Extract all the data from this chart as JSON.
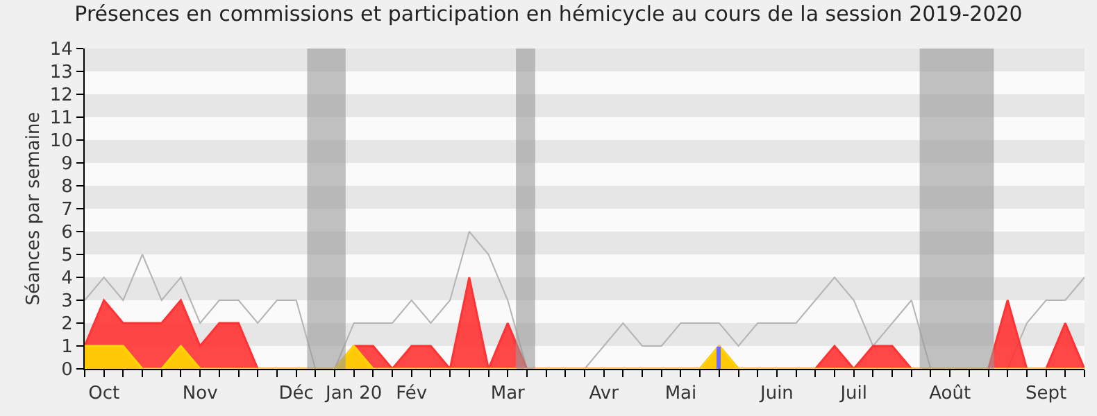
{
  "chart_data": {
    "type": "area",
    "title": "Présences en commissions et participation en hémicycle au cours de la session 2019-2020",
    "ylabel": "Séances par semaine",
    "x": [
      "2019-09-30",
      "2019-10-07",
      "2019-10-14",
      "2019-10-21",
      "2019-10-28",
      "2019-11-04",
      "2019-11-11",
      "2019-11-18",
      "2019-11-25",
      "2019-12-02",
      "2019-12-09",
      "2019-12-16",
      "2019-12-23",
      "2019-12-30",
      "2020-01-06",
      "2020-01-13",
      "2020-01-20",
      "2020-01-27",
      "2020-02-03",
      "2020-02-10",
      "2020-02-17",
      "2020-02-24",
      "2020-03-02",
      "2020-03-09",
      "2020-03-16",
      "2020-03-23",
      "2020-03-30",
      "2020-04-06",
      "2020-04-13",
      "2020-04-20",
      "2020-04-27",
      "2020-05-04",
      "2020-05-11",
      "2020-05-18",
      "2020-05-25",
      "2020-06-01",
      "2020-06-08",
      "2020-06-15",
      "2020-06-22",
      "2020-06-29",
      "2020-07-06",
      "2020-07-13",
      "2020-07-20",
      "2020-07-27",
      "2020-08-03",
      "2020-08-10",
      "2020-08-17",
      "2020-08-24",
      "2020-08-31",
      "2020-09-07",
      "2020-09-14",
      "2020-09-21",
      "2020-09-28"
    ],
    "series": [
      {
        "type": "line",
        "color": "#b4b4b4",
        "values": [
          3,
          4,
          3,
          5,
          3,
          4,
          2,
          3,
          3,
          2,
          3,
          3,
          0,
          0,
          2,
          2,
          2,
          3,
          2,
          3,
          6,
          5,
          3,
          0,
          0,
          0,
          0,
          1,
          2,
          1,
          1,
          2,
          2,
          2,
          1,
          2,
          2,
          2,
          3,
          4,
          3,
          1,
          2,
          3,
          0,
          0,
          0,
          0,
          0,
          2,
          3,
          3,
          4
        ]
      },
      {
        "color": "#ff3333",
        "values": [
          1,
          3,
          2,
          2,
          2,
          3,
          1,
          2,
          2,
          0,
          0,
          0,
          0,
          0,
          1,
          1,
          0,
          1,
          1,
          0,
          4,
          0,
          2,
          0,
          0,
          0,
          0,
          0,
          0,
          0,
          0,
          0,
          0,
          1,
          0,
          0,
          0,
          0,
          0,
          1,
          0,
          1,
          1,
          0,
          0,
          0,
          0,
          0,
          3,
          0,
          0,
          2,
          0
        ]
      },
      {
        "color": "#ffd700",
        "values": [
          1,
          1,
          1,
          0,
          0,
          1,
          0,
          0,
          0,
          0,
          0,
          0,
          0,
          0,
          1,
          0,
          0,
          0,
          0,
          0,
          0,
          0,
          0,
          0,
          0,
          0,
          0,
          0,
          0,
          0,
          0,
          0,
          0,
          1,
          0,
          0,
          0,
          0,
          0,
          0,
          0,
          0,
          0,
          0,
          0,
          0,
          0,
          0,
          0,
          0,
          0,
          0,
          0
        ]
      },
      {
        "type": "bar",
        "color": "#6b6bff",
        "values": [
          null,
          null,
          null,
          null,
          null,
          null,
          null,
          null,
          null,
          null,
          null,
          null,
          null,
          null,
          null,
          null,
          null,
          null,
          null,
          null,
          null,
          null,
          null,
          null,
          null,
          null,
          null,
          null,
          null,
          null,
          null,
          null,
          null,
          1,
          null,
          null,
          null,
          null,
          null,
          null,
          null,
          null,
          null,
          null,
          null,
          null,
          null,
          null,
          null,
          null,
          null,
          null,
          null
        ]
      }
    ],
    "bands": [
      {
        "axis": "y",
        "from": 1,
        "to": 2,
        "color": "#e6e6e6"
      },
      {
        "axis": "y",
        "from": 3,
        "to": 4,
        "color": "#e6e6e6"
      },
      {
        "axis": "y",
        "from": 5,
        "to": 6,
        "color": "#e6e6e6"
      },
      {
        "axis": "y",
        "from": 7,
        "to": 8,
        "color": "#e6e6e6"
      },
      {
        "axis": "y",
        "from": 9,
        "to": 10,
        "color": "#e6e6e6"
      },
      {
        "axis": "y",
        "from": 11,
        "to": 12,
        "color": "#e6e6e6"
      },
      {
        "axis": "y",
        "from": 13,
        "to": 14,
        "color": "#e6e6e6"
      },
      {
        "axis": "x",
        "from": "2019-12-20",
        "to": "2020-01-03",
        "color": "#999999"
      },
      {
        "axis": "x",
        "from": "2020-03-05",
        "to": "2020-03-12",
        "color": "#999999"
      },
      {
        "axis": "x",
        "from": "2020-07-30",
        "to": "2020-08-26",
        "color": "#999999"
      }
    ],
    "xlim": [
      "2019-09-30",
      "2020-09-28"
    ],
    "xticks": [
      {
        "value": "2019-09-30",
        "label": null
      },
      {
        "value": "2019-10-07",
        "label": "Oct"
      },
      {
        "value": "2019-10-14",
        "label": null
      },
      {
        "value": "2019-10-21",
        "label": null
      },
      {
        "value": "2019-10-28",
        "label": null
      },
      {
        "value": "2019-11-04",
        "label": null
      },
      {
        "value": "2019-11-11",
        "label": "Nov"
      },
      {
        "value": "2019-11-18",
        "label": null
      },
      {
        "value": "2019-11-25",
        "label": null
      },
      {
        "value": "2019-12-02",
        "label": null
      },
      {
        "value": "2019-12-09",
        "label": null
      },
      {
        "value": "2019-12-16",
        "label": "Déc"
      },
      {
        "value": "2019-12-23",
        "label": null
      },
      {
        "value": "2019-12-30",
        "label": null
      },
      {
        "value": "2020-01-06",
        "label": "Jan 20"
      },
      {
        "value": "2020-01-13",
        "label": null
      },
      {
        "value": "2020-01-20",
        "label": null
      },
      {
        "value": "2020-01-27",
        "label": "Fév"
      },
      {
        "value": "2020-02-03",
        "label": null
      },
      {
        "value": "2020-02-10",
        "label": null
      },
      {
        "value": "2020-02-17",
        "label": null
      },
      {
        "value": "2020-02-24",
        "label": null
      },
      {
        "value": "2020-03-02",
        "label": "Mar"
      },
      {
        "value": "2020-03-09",
        "label": null
      },
      {
        "value": "2020-03-16",
        "label": null
      },
      {
        "value": "2020-03-23",
        "label": null
      },
      {
        "value": "2020-03-30",
        "label": null
      },
      {
        "value": "2020-04-06",
        "label": "Avr"
      },
      {
        "value": "2020-04-13",
        "label": null
      },
      {
        "value": "2020-04-20",
        "label": null
      },
      {
        "value": "2020-04-27",
        "label": null
      },
      {
        "value": "2020-05-04",
        "label": "Mai"
      },
      {
        "value": "2020-05-11",
        "label": null
      },
      {
        "value": "2020-05-18",
        "label": null
      },
      {
        "value": "2020-05-25",
        "label": null
      },
      {
        "value": "2020-06-01",
        "label": null
      },
      {
        "value": "2020-06-08",
        "label": "Juin"
      },
      {
        "value": "2020-06-15",
        "label": null
      },
      {
        "value": "2020-06-22",
        "label": null
      },
      {
        "value": "2020-06-29",
        "label": null
      },
      {
        "value": "2020-07-06",
        "label": "Juil"
      },
      {
        "value": "2020-07-13",
        "label": null
      },
      {
        "value": "2020-07-20",
        "label": null
      },
      {
        "value": "2020-07-27",
        "label": null
      },
      {
        "value": "2020-08-03",
        "label": null
      },
      {
        "value": "2020-08-10",
        "label": "Août"
      },
      {
        "value": "2020-08-17",
        "label": null
      },
      {
        "value": "2020-08-24",
        "label": null
      },
      {
        "value": "2020-08-31",
        "label": null
      },
      {
        "value": "2020-09-07",
        "label": null
      },
      {
        "value": "2020-09-14",
        "label": "Sept"
      },
      {
        "value": "2020-09-21",
        "label": null
      },
      {
        "value": "2020-09-28",
        "label": null
      }
    ],
    "ylim": [
      0,
      14
    ],
    "yticks": [
      0,
      1,
      2,
      3,
      4,
      5,
      6,
      7,
      8,
      9,
      10,
      11,
      12,
      13,
      14
    ],
    "marker": "none"
  }
}
